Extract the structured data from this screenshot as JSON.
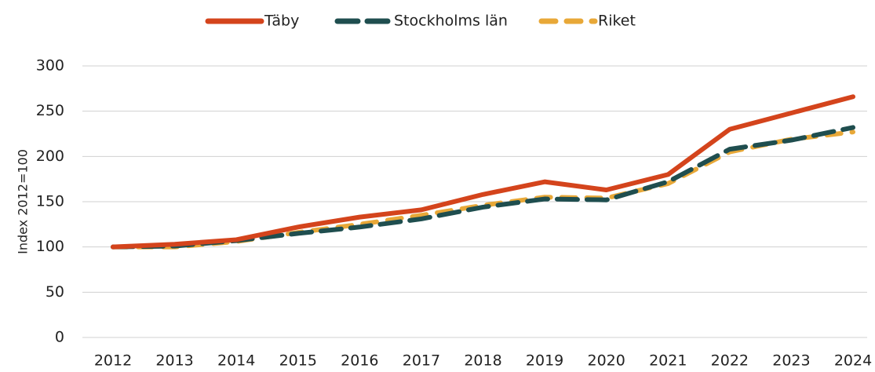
{
  "chart_data": {
    "type": "line",
    "y_label": "Index 2012=100",
    "categories": [
      "2012",
      "2013",
      "2014",
      "2015",
      "2016",
      "2017",
      "2018",
      "2019",
      "2020",
      "2021",
      "2022",
      "2023",
      "2024"
    ],
    "series": [
      {
        "name": "Täby",
        "color": "#d4441c",
        "dash": "solid",
        "values": [
          100,
          103,
          108,
          122,
          133,
          141,
          158,
          172,
          163,
          180,
          230,
          248,
          266
        ]
      },
      {
        "name": "Stockholms län",
        "color": "#1f4e4f",
        "dash": "long",
        "values": [
          100,
          101,
          107,
          115,
          122,
          131,
          144,
          153,
          152,
          172,
          208,
          218,
          232
        ]
      },
      {
        "name": "Riket",
        "color": "#e8a838",
        "dash": "short",
        "values": [
          100,
          100,
          106,
          116,
          125,
          135,
          146,
          155,
          154,
          170,
          205,
          219,
          227
        ]
      }
    ],
    "ylim": [
      0,
      300
    ],
    "yticks": [
      0,
      50,
      100,
      150,
      200,
      250,
      300
    ],
    "grid": true,
    "legend": "top"
  }
}
